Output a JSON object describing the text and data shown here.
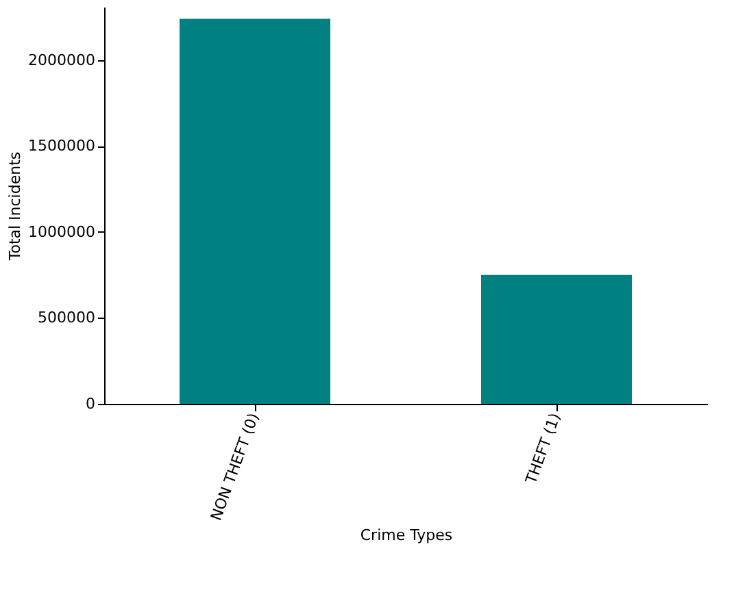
{
  "chart_data": {
    "type": "bar",
    "xlabel": "Crime Types",
    "ylabel": "Total Incidents",
    "categories": [
      "NON THEFT (0)",
      "THEFT (1)"
    ],
    "values": [
      2240000,
      750000
    ],
    "color": "#008080",
    "ylim": [
      0,
      2310000
    ],
    "yticks": [
      0,
      500000,
      1000000,
      1500000,
      2000000
    ],
    "grid": false
  }
}
